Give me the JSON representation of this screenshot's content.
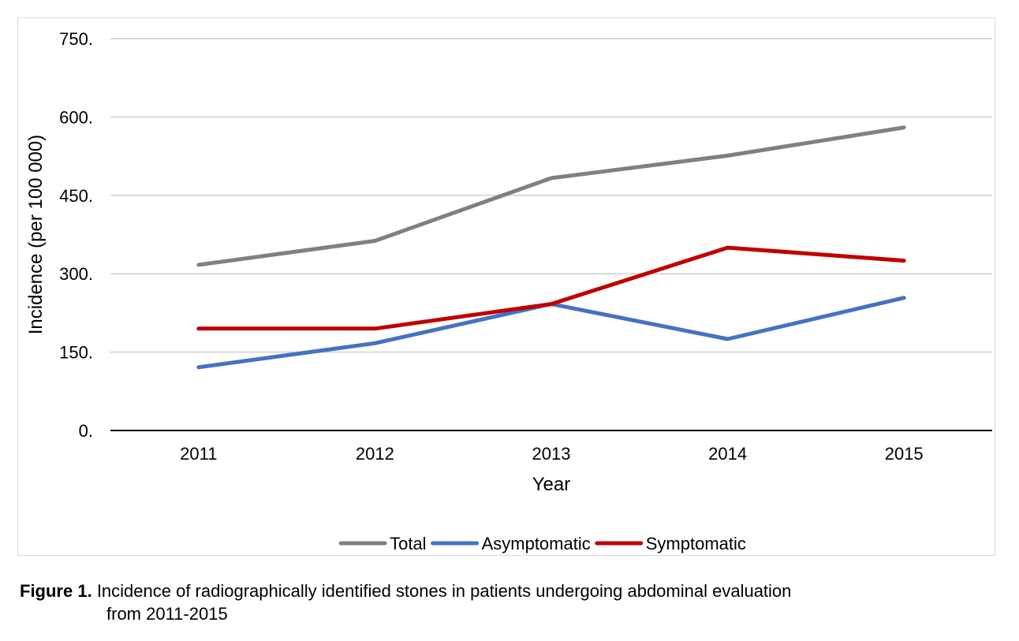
{
  "chart_data": {
    "type": "line",
    "categories": [
      "2011",
      "2012",
      "2013",
      "2014",
      "2015"
    ],
    "series": [
      {
        "name": "Total",
        "color": "#808080",
        "values": [
          317,
          363,
          483,
          526,
          580
        ]
      },
      {
        "name": "Asymptomatic",
        "color": "#4472c4",
        "values": [
          121,
          167,
          242,
          175,
          254
        ]
      },
      {
        "name": "Symptomatic",
        "color": "#c00000",
        "values": [
          195,
          195,
          242,
          350,
          325
        ]
      }
    ],
    "ylim": [
      0,
      750
    ],
    "yticks": [
      0,
      150,
      300,
      450,
      600,
      750
    ],
    "ytick_labels": [
      "0.",
      "150.",
      "300.",
      "450.",
      "600.",
      "750."
    ],
    "xlabel": "Year",
    "ylabel": "Incidence (per 100 000)",
    "grid": true,
    "legend_position": "bottom"
  },
  "caption": {
    "label": "Figure 1.",
    "line1": "Incidence of radiographically identified stones in patients undergoing abdominal evaluation",
    "line2": "from 2011-2015"
  }
}
